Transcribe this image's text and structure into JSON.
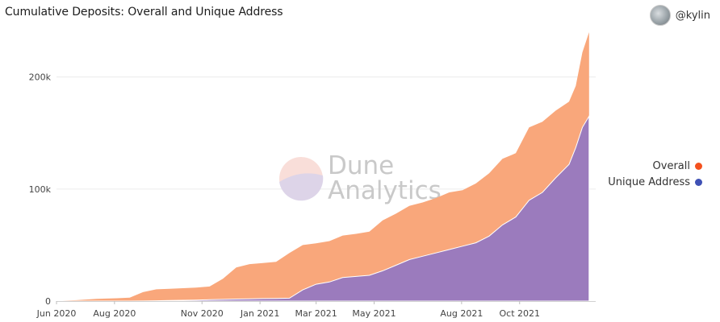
{
  "header": {
    "title": "Cumulative Deposits: Overall and Unique Address",
    "author": "@kylin"
  },
  "watermark": {
    "line1": "Dune",
    "line2": "Analytics"
  },
  "colors": {
    "overall_legend": "#f4511e",
    "unique_legend": "#3f51b5",
    "overall_area": "#f9a77b",
    "unique_area": "#9b7bbd"
  },
  "chart_data": {
    "type": "area",
    "title": "Cumulative Deposits: Overall and Unique Address",
    "xlabel": "",
    "ylabel": "",
    "ylim": [
      0,
      240000
    ],
    "xlim": [
      "2020-06-01",
      "2021-12-20"
    ],
    "grid": "horizontal",
    "legend": "right",
    "x_ticks": [
      {
        "date": "2020-06-01",
        "label": "Jun 2020"
      },
      {
        "date": "2020-08-01",
        "label": "Aug 2020"
      },
      {
        "date": "2020-11-01",
        "label": "Nov 2020"
      },
      {
        "date": "2021-01-01",
        "label": "Jan 2021"
      },
      {
        "date": "2021-03-01",
        "label": "Mar 2021"
      },
      {
        "date": "2021-05-01",
        "label": "May 2021"
      },
      {
        "date": "2021-08-01",
        "label": "Aug 2021"
      },
      {
        "date": "2021-10-01",
        "label": "Oct 2021"
      }
    ],
    "y_ticks": [
      {
        "value": 0,
        "label": "0"
      },
      {
        "value": 100000,
        "label": "100k"
      },
      {
        "value": 200000,
        "label": "200k"
      }
    ],
    "series": [
      {
        "name": "Overall",
        "x": [
          "2020-06-01",
          "2020-06-22",
          "2020-07-13",
          "2020-08-03",
          "2020-08-17",
          "2020-08-31",
          "2020-09-14",
          "2020-09-28",
          "2020-10-12",
          "2020-10-26",
          "2020-11-09",
          "2020-11-23",
          "2020-12-07",
          "2020-12-21",
          "2021-01-04",
          "2021-01-18",
          "2021-02-01",
          "2021-02-15",
          "2021-03-01",
          "2021-03-15",
          "2021-03-29",
          "2021-04-12",
          "2021-04-26",
          "2021-05-10",
          "2021-05-24",
          "2021-06-07",
          "2021-06-21",
          "2021-07-05",
          "2021-07-19",
          "2021-08-02",
          "2021-08-16",
          "2021-08-30",
          "2021-09-13",
          "2021-09-27",
          "2021-10-11",
          "2021-10-25",
          "2021-11-08",
          "2021-11-22",
          "2021-11-29",
          "2021-12-06",
          "2021-12-13"
        ],
        "values": [
          200,
          800,
          2000,
          2500,
          3000,
          8000,
          10500,
          11000,
          11500,
          12000,
          13000,
          20000,
          30000,
          33000,
          34000,
          35000,
          43000,
          50000,
          51500,
          53500,
          58500,
          60000,
          62000,
          72000,
          78000,
          85000,
          88000,
          92000,
          97000,
          99000,
          105000,
          114000,
          127000,
          132000,
          155000,
          160000,
          170000,
          178000,
          192000,
          222000,
          240000
        ]
      },
      {
        "name": "Unique Address",
        "x": [
          "2020-06-01",
          "2020-06-22",
          "2020-07-13",
          "2020-08-03",
          "2020-08-17",
          "2020-08-31",
          "2020-09-14",
          "2020-09-28",
          "2020-10-12",
          "2020-10-26",
          "2020-11-09",
          "2020-11-23",
          "2020-12-07",
          "2020-12-21",
          "2021-01-04",
          "2021-01-18",
          "2021-02-01",
          "2021-02-15",
          "2021-03-01",
          "2021-03-15",
          "2021-03-29",
          "2021-04-12",
          "2021-04-26",
          "2021-05-10",
          "2021-05-24",
          "2021-06-07",
          "2021-06-21",
          "2021-07-05",
          "2021-07-19",
          "2021-08-02",
          "2021-08-16",
          "2021-08-30",
          "2021-09-13",
          "2021-09-27",
          "2021-10-11",
          "2021-10-25",
          "2021-11-08",
          "2021-11-22",
          "2021-11-29",
          "2021-12-06",
          "2021-12-13"
        ],
        "values": [
          0,
          0,
          0,
          0,
          0,
          100,
          300,
          500,
          700,
          900,
          1200,
          1500,
          1800,
          2000,
          2200,
          2400,
          2600,
          10000,
          15000,
          17000,
          21000,
          22000,
          23000,
          27000,
          32000,
          37000,
          40000,
          43000,
          46000,
          49000,
          52000,
          58000,
          68000,
          75000,
          90000,
          97000,
          110000,
          122000,
          137000,
          155000,
          165000
        ]
      }
    ]
  }
}
